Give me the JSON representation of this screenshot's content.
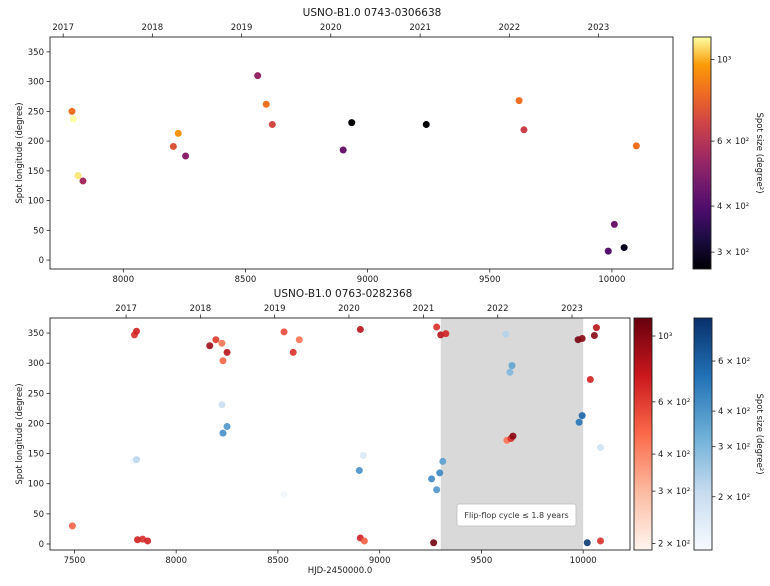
{
  "chart_data": [
    {
      "type": "scatter",
      "title": "USNO-B1.0 0743-0306638",
      "ylabel": "Spot longitude (degree)",
      "xlim": [
        7700,
        10250
      ],
      "ylim": [
        -15,
        375
      ],
      "x_ticks": [
        8000,
        8500,
        9000,
        9500,
        10000
      ],
      "y_ticks": [
        0,
        50,
        100,
        150,
        200,
        250,
        300,
        350
      ],
      "top_axis_ticks": [
        {
          "label": "2017",
          "x": 7754
        },
        {
          "label": "2018",
          "x": 8119
        },
        {
          "label": "2019",
          "x": 8484
        },
        {
          "label": "2020",
          "x": 8849
        },
        {
          "label": "2021",
          "x": 9215
        },
        {
          "label": "2022",
          "x": 9580
        },
        {
          "label": "2023",
          "x": 9945
        }
      ],
      "colorbar": {
        "label": "Spot size (degree²)",
        "cmap": "inferno",
        "scale": "log",
        "range": [
          270,
          1150
        ],
        "ticks": [
          {
            "value": 300,
            "label": "3 × 10²"
          },
          {
            "value": 400,
            "label": "4 × 10²"
          },
          {
            "value": 600,
            "label": "6 × 10²"
          },
          {
            "value": 1000,
            "label": "10³"
          }
        ]
      },
      "points": [
        {
          "x": 7790,
          "y": 250,
          "size": 820
        },
        {
          "x": 7795,
          "y": 237,
          "size": 1150
        },
        {
          "x": 7815,
          "y": 142,
          "size": 1100
        },
        {
          "x": 7835,
          "y": 133,
          "size": 560
        },
        {
          "x": 8205,
          "y": 191,
          "size": 720
        },
        {
          "x": 8225,
          "y": 213,
          "size": 930
        },
        {
          "x": 8255,
          "y": 175,
          "size": 500
        },
        {
          "x": 8550,
          "y": 310,
          "size": 520
        },
        {
          "x": 8585,
          "y": 262,
          "size": 820
        },
        {
          "x": 8610,
          "y": 228,
          "size": 680
        },
        {
          "x": 8900,
          "y": 185,
          "size": 440
        },
        {
          "x": 8935,
          "y": 231,
          "size": 270
        },
        {
          "x": 9240,
          "y": 228,
          "size": 270
        },
        {
          "x": 9620,
          "y": 268,
          "size": 820
        },
        {
          "x": 9640,
          "y": 219,
          "size": 650
        },
        {
          "x": 9985,
          "y": 15,
          "size": 400
        },
        {
          "x": 10010,
          "y": 60,
          "size": 440
        },
        {
          "x": 10050,
          "y": 21,
          "size": 290
        },
        {
          "x": 10100,
          "y": 192,
          "size": 820
        }
      ]
    },
    {
      "type": "scatter",
      "title": "USNO-B1.0 0763-0282368",
      "ylabel": "Spot longitude (degree)",
      "xlabel": "HJD-2450000.0",
      "xlim": [
        7380,
        10230
      ],
      "ylim": [
        -10,
        375
      ],
      "x_ticks": [
        7500,
        8000,
        8500,
        9000,
        9500,
        10000
      ],
      "y_ticks": [
        0,
        50,
        100,
        150,
        200,
        250,
        300,
        350
      ],
      "top_axis_ticks": [
        {
          "label": "2017",
          "x": 7754
        },
        {
          "label": "2018",
          "x": 8119
        },
        {
          "label": "2019",
          "x": 8484
        },
        {
          "label": "2020",
          "x": 8849
        },
        {
          "label": "2021",
          "x": 9215
        },
        {
          "label": "2022",
          "x": 9580
        },
        {
          "label": "2023",
          "x": 9945
        }
      ],
      "shaded_region": {
        "x": [
          9300,
          10000
        ],
        "annotation": "Flip-flop cycle ≤ 1.8 years"
      },
      "colorbars": [
        {
          "label": "",
          "cmap": "reds",
          "scale": "log",
          "range": [
            190,
            1150
          ],
          "ticks": [
            {
              "value": 200,
              "label": "2 × 10²"
            },
            {
              "value": 300,
              "label": "3 × 10²"
            },
            {
              "value": 400,
              "label": "4 × 10²"
            },
            {
              "value": 600,
              "label": "6 × 10²"
            },
            {
              "value": 1000,
              "label": "10³"
            }
          ]
        },
        {
          "label": "Spot size (degree²)",
          "cmap": "blues",
          "scale": "log",
          "range": [
            130,
            850
          ],
          "ticks": [
            {
              "value": 200,
              "label": "2 × 10²"
            },
            {
              "value": 300,
              "label": "3 × 10²"
            },
            {
              "value": 400,
              "label": "4 × 10²"
            },
            {
              "value": 600,
              "label": "6 × 10²"
            }
          ]
        }
      ],
      "series": [
        {
          "cmap": "reds",
          "points": [
            {
              "x": 7490,
              "y": 30,
              "size": 500
            },
            {
              "x": 7795,
              "y": 347,
              "size": 650
            },
            {
              "x": 7805,
              "y": 353,
              "size": 700
            },
            {
              "x": 7810,
              "y": 7,
              "size": 700
            },
            {
              "x": 7835,
              "y": 8,
              "size": 650
            },
            {
              "x": 7860,
              "y": 5,
              "size": 700
            },
            {
              "x": 8165,
              "y": 329,
              "size": 900
            },
            {
              "x": 8195,
              "y": 339,
              "size": 620
            },
            {
              "x": 8225,
              "y": 333,
              "size": 450
            },
            {
              "x": 8230,
              "y": 304,
              "size": 480
            },
            {
              "x": 8250,
              "y": 318,
              "size": 800
            },
            {
              "x": 8530,
              "y": 352,
              "size": 560
            },
            {
              "x": 8575,
              "y": 318,
              "size": 650
            },
            {
              "x": 8605,
              "y": 339,
              "size": 450
            },
            {
              "x": 8905,
              "y": 356,
              "size": 800
            },
            {
              "x": 8905,
              "y": 10,
              "size": 700
            },
            {
              "x": 8925,
              "y": 5,
              "size": 500
            },
            {
              "x": 9265,
              "y": 2,
              "size": 1100
            },
            {
              "x": 9280,
              "y": 360,
              "size": 650
            },
            {
              "x": 9300,
              "y": 347,
              "size": 800
            },
            {
              "x": 9325,
              "y": 349,
              "size": 700
            },
            {
              "x": 9625,
              "y": 172,
              "size": 450
            },
            {
              "x": 9645,
              "y": 175,
              "size": 650
            },
            {
              "x": 9655,
              "y": 179,
              "size": 1000
            },
            {
              "x": 9975,
              "y": 339,
              "size": 1100
            },
            {
              "x": 9995,
              "y": 341,
              "size": 1000
            },
            {
              "x": 10035,
              "y": 273,
              "size": 700
            },
            {
              "x": 10055,
              "y": 346,
              "size": 1000
            },
            {
              "x": 10065,
              "y": 359,
              "size": 800
            },
            {
              "x": 10085,
              "y": 5,
              "size": 650
            }
          ]
        },
        {
          "cmap": "blues",
          "points": [
            {
              "x": 7790,
              "y": 138,
              "size": 140
            },
            {
              "x": 7805,
              "y": 140,
              "size": 220
            },
            {
              "x": 8225,
              "y": 231,
              "size": 200
            },
            {
              "x": 8230,
              "y": 184,
              "size": 420
            },
            {
              "x": 8250,
              "y": 195,
              "size": 400
            },
            {
              "x": 8530,
              "y": 82,
              "size": 140
            },
            {
              "x": 8900,
              "y": 122,
              "size": 420
            },
            {
              "x": 8920,
              "y": 147,
              "size": 170
            },
            {
              "x": 9255,
              "y": 108,
              "size": 440
            },
            {
              "x": 9280,
              "y": 90,
              "size": 400
            },
            {
              "x": 9295,
              "y": 118,
              "size": 450
            },
            {
              "x": 9310,
              "y": 137,
              "size": 370
            },
            {
              "x": 9620,
              "y": 348,
              "size": 230
            },
            {
              "x": 9640,
              "y": 285,
              "size": 300
            },
            {
              "x": 9650,
              "y": 296,
              "size": 360
            },
            {
              "x": 9980,
              "y": 202,
              "size": 520
            },
            {
              "x": 9995,
              "y": 213,
              "size": 580
            },
            {
              "x": 10020,
              "y": 2,
              "size": 800
            },
            {
              "x": 10085,
              "y": 160,
              "size": 190
            }
          ]
        }
      ]
    }
  ]
}
